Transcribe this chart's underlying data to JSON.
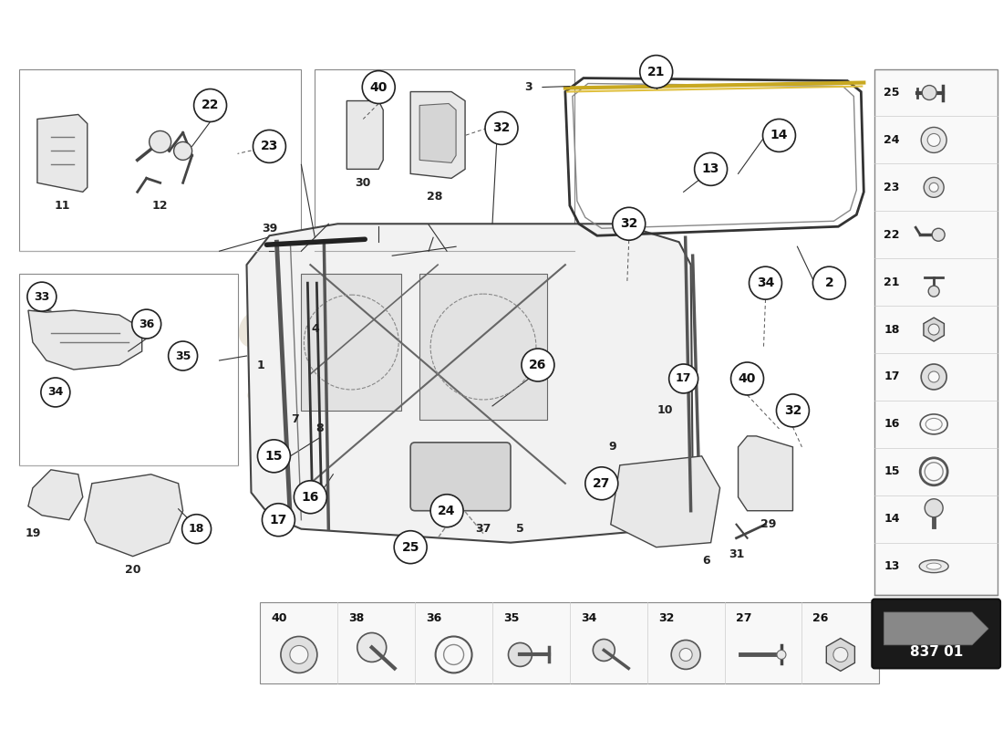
{
  "bg": "#ffffff",
  "watermark1": "eurospares",
  "watermark2": "a passion for parts since 1965",
  "wm_color": "#c8b898",
  "part_number": "837 01",
  "right_nums": [
    25,
    24,
    23,
    22,
    21,
    18,
    17,
    16,
    15,
    14,
    13
  ],
  "bottom_nums": [
    40,
    38,
    36,
    35,
    34,
    32,
    27,
    26
  ],
  "circ_fc": "#ffffff",
  "circ_ec": "#222222",
  "circ_lw": 1.2,
  "label_fs": 9,
  "line_color": "#333333",
  "box_ec": "#888888",
  "box_fc": "#ffffff",
  "part_fill": "#e8e8e8",
  "part_edge": "#444444"
}
